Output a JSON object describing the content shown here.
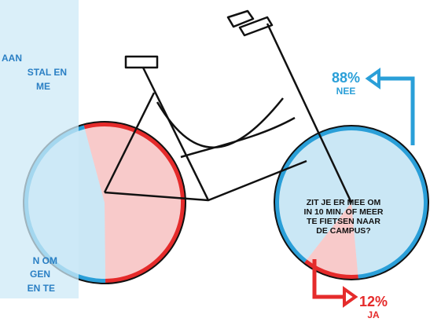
{
  "side_panel": {
    "lines": [
      "AAN",
      "STAL EN",
      "ME",
      "N OM",
      "GEN",
      "EN TE"
    ]
  },
  "question": {
    "lines": [
      "ZIT JE ER MEE OM",
      "IN 10 MIN. OF MEER",
      "TE FIETSEN NAAR",
      "DE CAMPUS?"
    ]
  },
  "chart_data": [
    {
      "type": "pie",
      "categories": [
        null,
        null
      ],
      "values": [
        54,
        46
      ],
      "colors": [
        "#e52b2b",
        "#2a9fd8"
      ]
    },
    {
      "type": "pie",
      "categories": [
        "NEE",
        "JA"
      ],
      "values": [
        88,
        12
      ],
      "value_labels": [
        "88%",
        "12%"
      ],
      "colors": [
        "#2a9fd8",
        "#e52b2b"
      ]
    }
  ]
}
